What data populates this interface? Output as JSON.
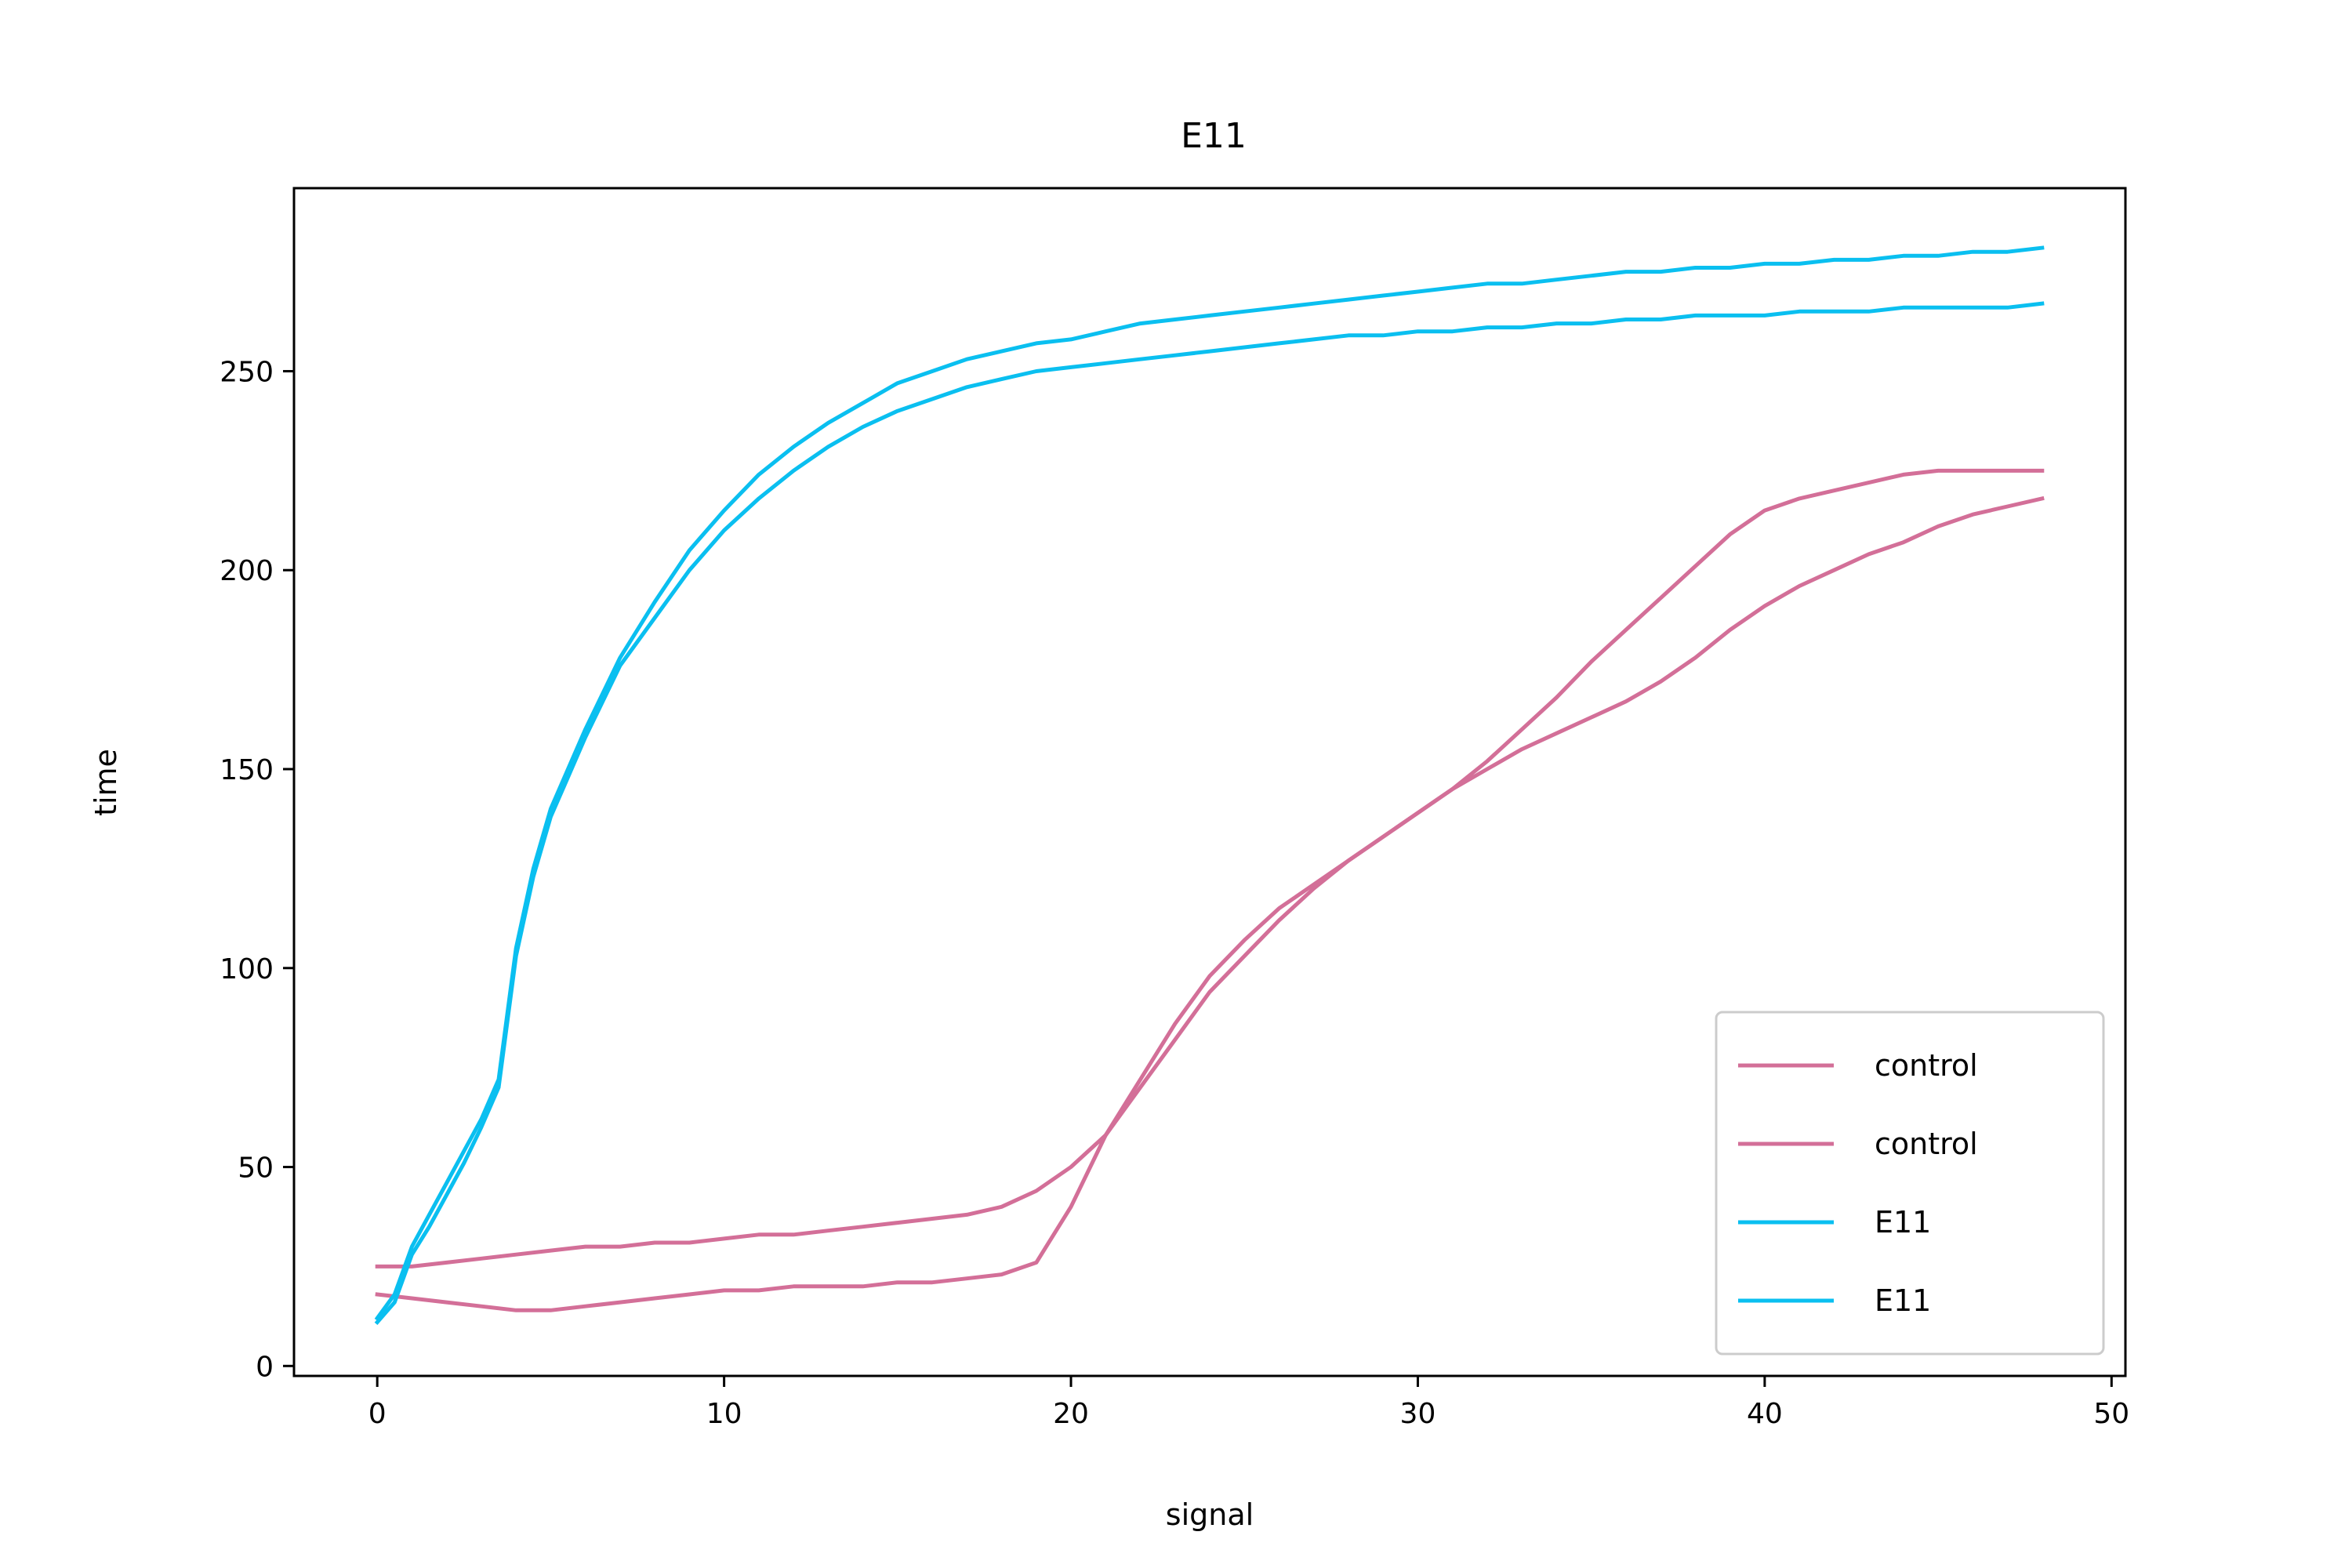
{
  "chart_data": {
    "type": "line",
    "title": "E11",
    "xlabel": "signal",
    "ylabel": "time",
    "xlim": [
      -2.4,
      50.4
    ],
    "ylim": [
      -2.5,
      296
    ],
    "xticks": [
      0,
      10,
      20,
      30,
      40,
      50
    ],
    "yticks": [
      0,
      50,
      100,
      150,
      200,
      250
    ],
    "grid": false,
    "legend": {
      "position": "lower-right"
    },
    "series": [
      {
        "name": "control",
        "color": "#d36f98",
        "x": [
          0,
          1,
          2,
          3,
          4,
          5,
          6,
          7,
          8,
          9,
          10,
          11,
          12,
          13,
          14,
          15,
          16,
          17,
          18,
          19,
          20,
          21,
          22,
          23,
          24,
          25,
          26,
          27,
          28,
          29,
          30,
          31,
          32,
          33,
          34,
          35,
          36,
          37,
          38,
          39,
          40,
          41,
          42,
          43,
          44,
          45,
          46,
          47,
          48
        ],
        "values": [
          25,
          25,
          26,
          27,
          28,
          29,
          30,
          30,
          31,
          31,
          32,
          33,
          33,
          34,
          35,
          36,
          37,
          38,
          40,
          44,
          50,
          58,
          70,
          82,
          94,
          103,
          112,
          120,
          127,
          133,
          139,
          145,
          152,
          160,
          168,
          177,
          185,
          193,
          201,
          209,
          215,
          218,
          220,
          222,
          224,
          225,
          225,
          225,
          225
        ]
      },
      {
        "name": "control",
        "color": "#d36f98",
        "x": [
          0,
          1,
          2,
          3,
          4,
          5,
          6,
          7,
          8,
          9,
          10,
          11,
          12,
          13,
          14,
          15,
          16,
          17,
          18,
          19,
          20,
          21,
          22,
          23,
          24,
          25,
          26,
          27,
          28,
          29,
          30,
          31,
          32,
          33,
          34,
          35,
          36,
          37,
          38,
          39,
          40,
          41,
          42,
          43,
          44,
          45,
          46,
          47,
          48
        ],
        "values": [
          18,
          17,
          16,
          15,
          14,
          14,
          15,
          16,
          17,
          18,
          19,
          19,
          20,
          20,
          20,
          21,
          21,
          22,
          23,
          26,
          40,
          58,
          72,
          86,
          98,
          107,
          115,
          121,
          127,
          133,
          139,
          145,
          150,
          155,
          159,
          163,
          167,
          172,
          178,
          185,
          191,
          196,
          200,
          204,
          207,
          211,
          214,
          216,
          218
        ]
      },
      {
        "name": "E11",
        "color": "#0abff0",
        "x": [
          0,
          0.5,
          1,
          1.5,
          2,
          2.5,
          3,
          3.5,
          4,
          4.5,
          5,
          5.5,
          6,
          7,
          8,
          9,
          10,
          11,
          12,
          13,
          14,
          15,
          16,
          17,
          18,
          19,
          20,
          21,
          22,
          23,
          24,
          25,
          26,
          27,
          28,
          29,
          30,
          31,
          32,
          33,
          34,
          35,
          36,
          37,
          38,
          39,
          40,
          41,
          42,
          43,
          44,
          45,
          46,
          47,
          48
        ],
        "values": [
          12,
          18,
          30,
          38,
          46,
          54,
          62,
          72,
          105,
          125,
          140,
          150,
          160,
          178,
          192,
          205,
          215,
          224,
          231,
          237,
          242,
          247,
          250,
          253,
          255,
          257,
          258,
          260,
          262,
          263,
          264,
          265,
          266,
          267,
          268,
          269,
          270,
          271,
          272,
          272,
          273,
          274,
          275,
          275,
          276,
          276,
          277,
          277,
          278,
          278,
          279,
          279,
          280,
          280,
          281
        ]
      },
      {
        "name": "E11",
        "color": "#0abff0",
        "x": [
          0,
          0.5,
          1,
          1.5,
          2,
          2.5,
          3,
          3.5,
          4,
          4.5,
          5,
          5.5,
          6,
          7,
          8,
          9,
          10,
          11,
          12,
          13,
          14,
          15,
          16,
          17,
          18,
          19,
          20,
          21,
          22,
          23,
          24,
          25,
          26,
          27,
          28,
          29,
          30,
          31,
          32,
          33,
          34,
          35,
          36,
          37,
          38,
          39,
          40,
          41,
          42,
          43,
          44,
          45,
          46,
          47,
          48
        ],
        "values": [
          11,
          16,
          28,
          35,
          43,
          51,
          60,
          70,
          103,
          123,
          138,
          148,
          158,
          176,
          188,
          200,
          210,
          218,
          225,
          231,
          236,
          240,
          243,
          246,
          248,
          250,
          251,
          252,
          253,
          254,
          255,
          256,
          257,
          258,
          259,
          259,
          260,
          260,
          261,
          261,
          262,
          262,
          263,
          263,
          264,
          264,
          264,
          265,
          265,
          265,
          266,
          266,
          266,
          266,
          267
        ]
      }
    ]
  }
}
